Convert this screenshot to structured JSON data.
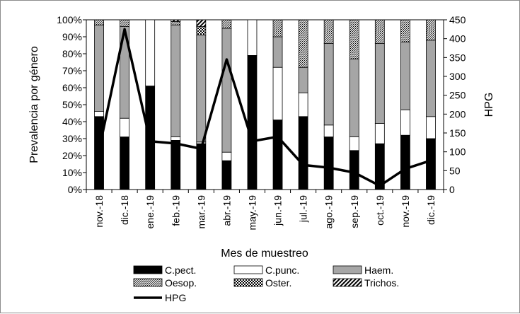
{
  "chart_data": {
    "type": "bar",
    "stacked": true,
    "categories": [
      "nov.-18",
      "dic.-18",
      "ene.-19",
      "feb.-19",
      "mar.-19",
      "abr.-19",
      "may.-19",
      "jun.-19",
      "jul.-19",
      "ago.-19",
      "sep.-19",
      "oct.-19",
      "nov.-19",
      "dic.-19"
    ],
    "xlabel": "Mes de muestreo",
    "ylabel": "Prevalencia por género",
    "y2label": "HPG",
    "ylim": [
      0,
      100
    ],
    "y2lim": [
      0,
      450
    ],
    "yticks": [
      "0%",
      "10%",
      "20%",
      "30%",
      "40%",
      "50%",
      "60%",
      "70%",
      "80%",
      "90%",
      "100%"
    ],
    "y2ticks": [
      "0",
      "50",
      "100",
      "150",
      "200",
      "250",
      "300",
      "350",
      "400",
      "450"
    ],
    "legend_position": "bottom",
    "series": [
      {
        "name": "C.pect.",
        "pattern": "solid-black",
        "values": [
          43,
          31,
          61,
          29,
          27,
          17,
          79,
          41,
          43,
          31,
          23,
          27,
          32,
          30
        ]
      },
      {
        "name": "C.punc.",
        "pattern": "white",
        "values": [
          3,
          11,
          39,
          2,
          1,
          5,
          21,
          31,
          14,
          7,
          8,
          12,
          15,
          13
        ]
      },
      {
        "name": "Haem.",
        "pattern": "gray",
        "values": [
          51,
          54,
          0,
          66,
          63,
          73,
          0,
          18,
          15,
          48,
          46,
          47,
          40,
          45
        ]
      },
      {
        "name": "Oesop.",
        "pattern": "dots",
        "values": [
          3,
          4,
          0,
          2,
          0,
          5,
          0,
          10,
          28,
          14,
          23,
          14,
          13,
          12
        ]
      },
      {
        "name": "Oster.",
        "pattern": "checker",
        "values": [
          0,
          0,
          0,
          0,
          5,
          0,
          0,
          0,
          0,
          0,
          0,
          0,
          0,
          0
        ]
      },
      {
        "name": "Trichos.",
        "pattern": "hatch",
        "values": [
          0,
          0,
          0,
          1,
          4,
          0,
          0,
          0,
          0,
          0,
          0,
          0,
          0,
          0
        ]
      }
    ],
    "line_series": {
      "name": "HPG",
      "axis": "secondary",
      "values": [
        105,
        425,
        128,
        122,
        108,
        345,
        128,
        140,
        65,
        58,
        45,
        10,
        55,
        77
      ]
    },
    "colors": {
      "c_pect": "#000000",
      "c_punc": "#ffffff",
      "haem": "#a6a6a6",
      "line": "#000000"
    }
  }
}
